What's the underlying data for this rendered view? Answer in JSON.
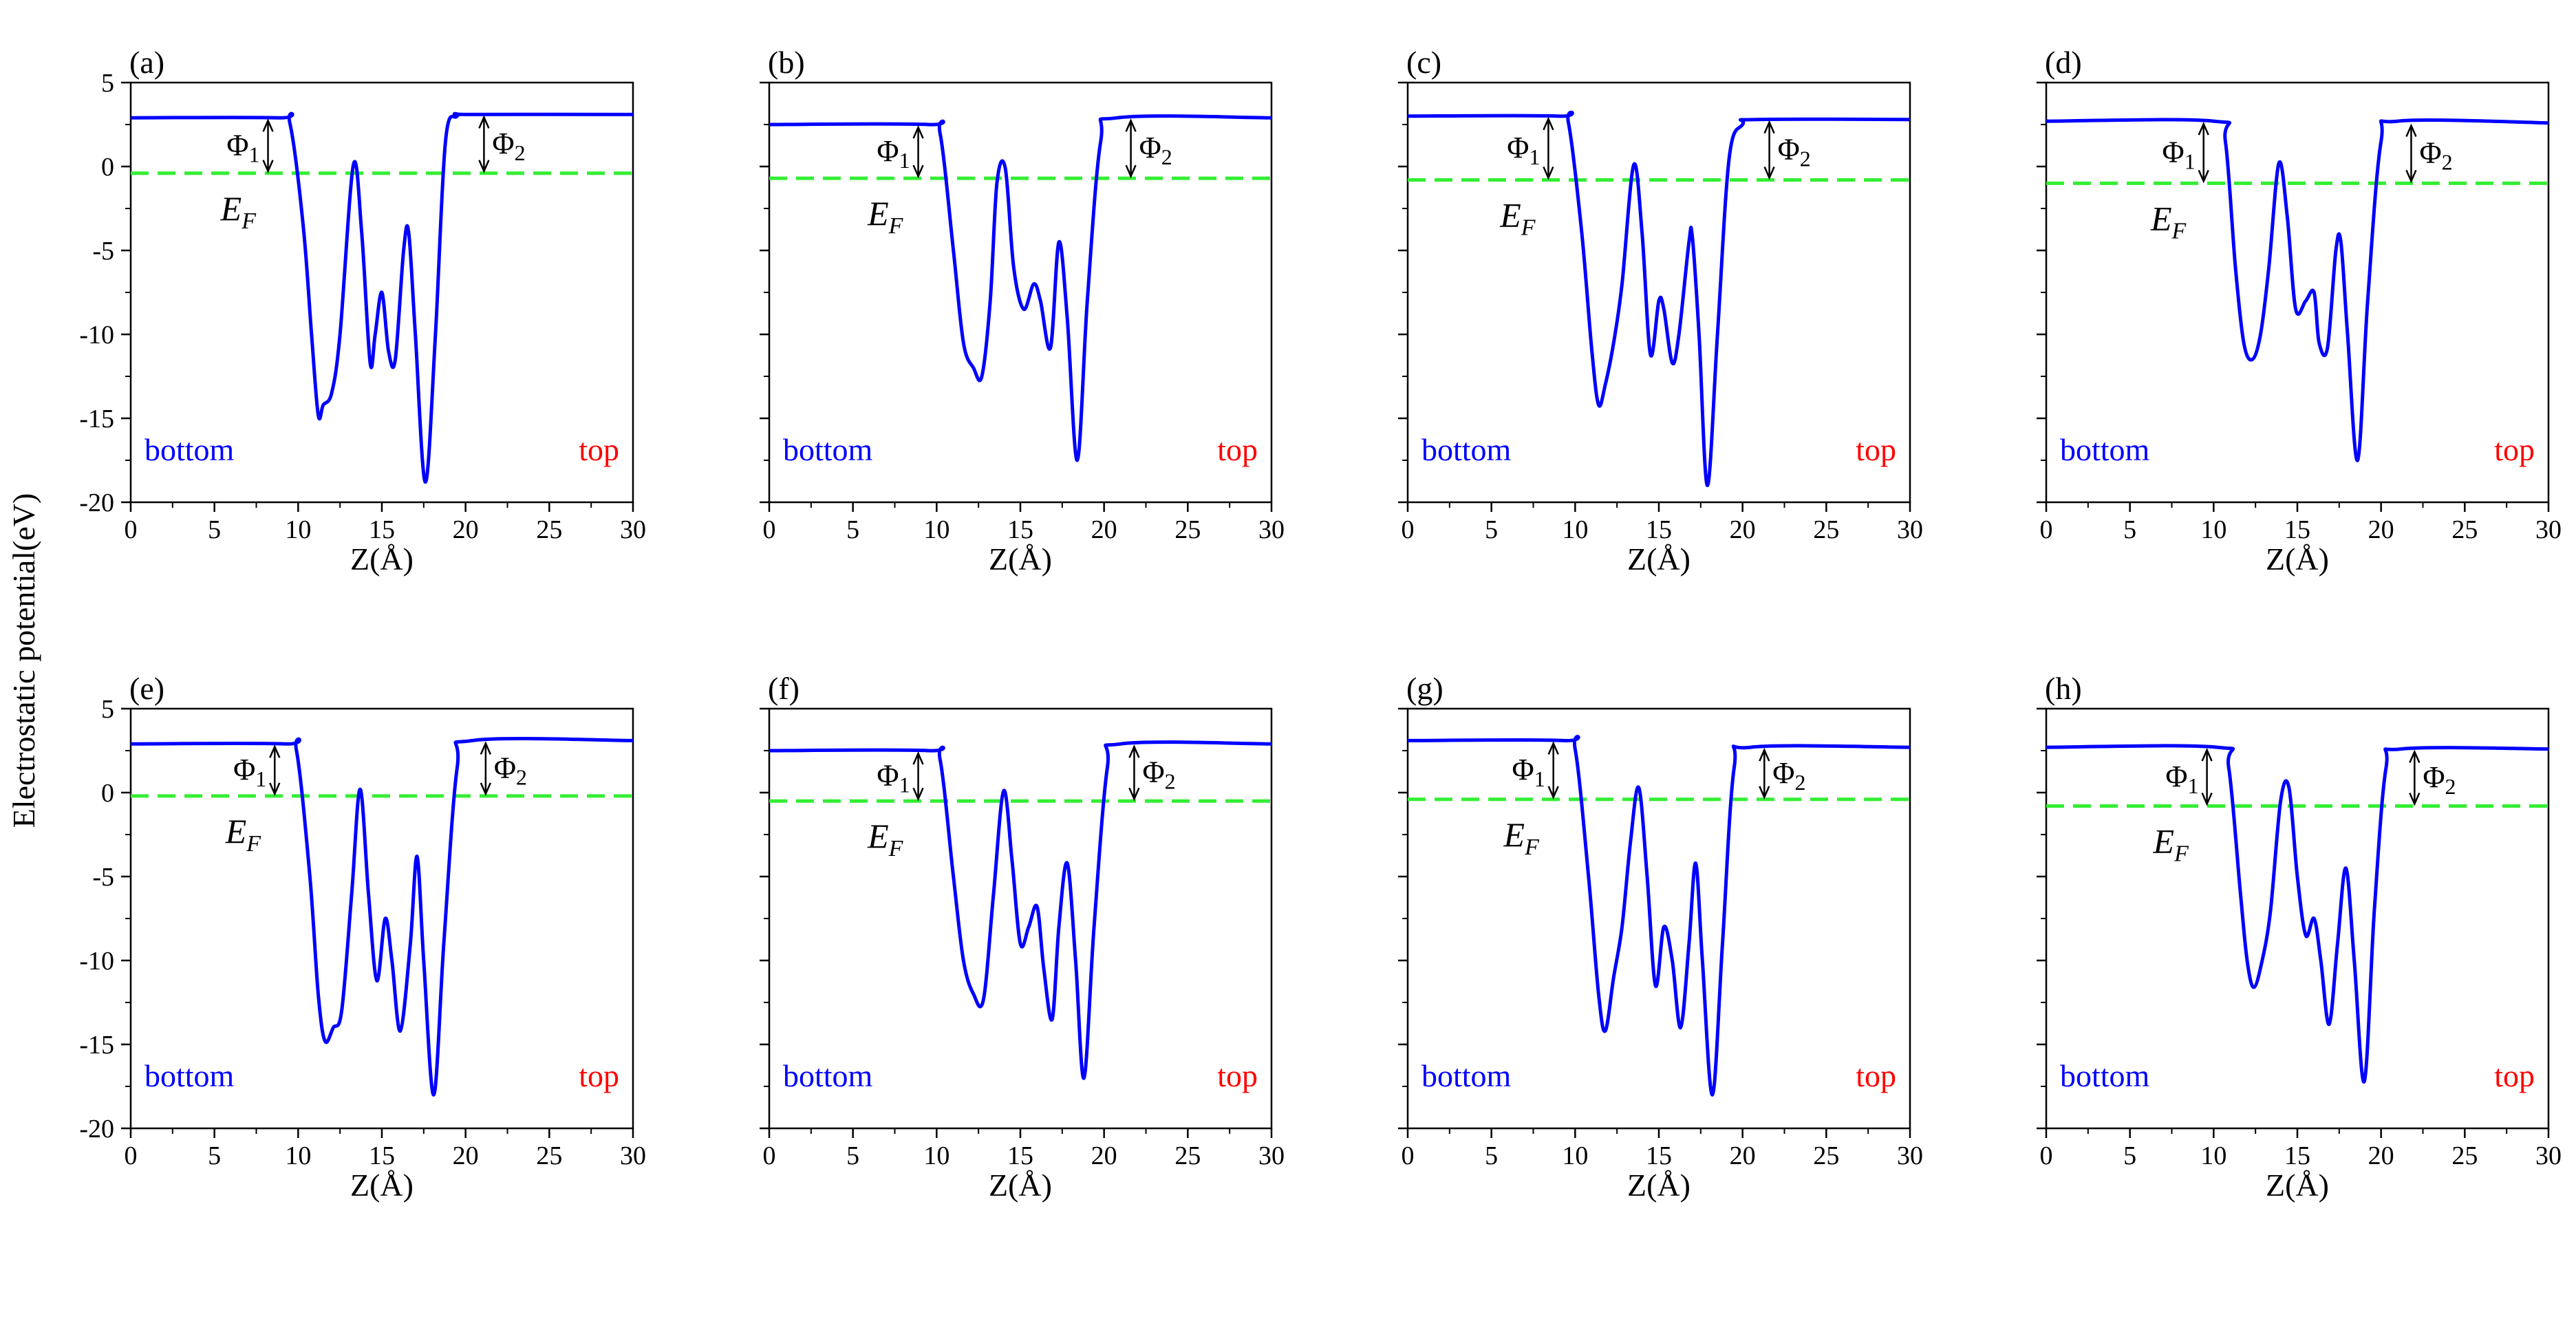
{
  "figure": {
    "ylabel": "Electrostatic potential(eV)",
    "xlabel": "Z(Å)"
  },
  "colors": {
    "potential_line": "#0000ff",
    "fermi_line": "#33ee33",
    "bottom_label": "#0000ff",
    "top_label": "#ff0000",
    "axes": "#000000"
  },
  "chart_data": [
    {
      "type": "line",
      "panel": "(a)",
      "xlabel": "Z(Å)",
      "ylabel": "Electrostatic potential(eV)",
      "xlim": [
        0,
        30
      ],
      "ylim": [
        -20,
        5
      ],
      "xticks": [
        "0",
        "5",
        "10",
        "15",
        "20",
        "25",
        "30"
      ],
      "yticks": [
        "5",
        "0",
        "-5",
        "-10",
        "-15",
        "-20"
      ],
      "series": [
        {
          "x": [
            0,
            8.8,
            9.5,
            10.3,
            10.8,
            11.2,
            11.5,
            12.0,
            12.5,
            13.3,
            13.8,
            14.3,
            14.6,
            15.0,
            15.4,
            15.8,
            16.3,
            16.6,
            17.0,
            17.6,
            18.2,
            18.8,
            19.5,
            20.3,
            30
          ],
          "y": [
            2.9,
            2.9,
            2.6,
            -3.5,
            -10,
            -14.8,
            -14.2,
            -13.5,
            -10,
            0.1,
            -4,
            -11.7,
            -10,
            -7.5,
            -11,
            -11.5,
            -5,
            -3.9,
            -10,
            -18.8,
            -10,
            1.5,
            3.0,
            3.1,
            3.1
          ]
        }
      ],
      "fermi_level": -0.4,
      "annotations": {
        "phi1": "Φ",
        "phi1_sub": "1",
        "phi2": "Φ",
        "phi2_sub": "2",
        "ef": "E",
        "ef_sub": "F",
        "bottom": "bottom",
        "top": "top"
      }
    },
    {
      "type": "line",
      "panel": "(b)",
      "xlabel": "Z(Å)",
      "ylabel": "",
      "xlim": [
        0,
        30
      ],
      "ylim": [
        -20,
        5
      ],
      "xticks": [
        "0",
        "5",
        "10",
        "15",
        "20",
        "25",
        "30"
      ],
      "yticks": [],
      "series": [
        {
          "x": [
            0,
            9.5,
            10.2,
            11.0,
            11.6,
            12.2,
            12.7,
            13.2,
            13.6,
            14.1,
            14.6,
            15.2,
            15.8,
            16.2,
            16.8,
            17.3,
            17.8,
            18.4,
            19.0,
            19.8,
            20.8,
            30
          ],
          "y": [
            2.5,
            2.5,
            2.0,
            -5,
            -10.5,
            -12,
            -12.5,
            -8,
            -1,
            -0.1,
            -6,
            -8.5,
            -7,
            -8,
            -10.8,
            -4.5,
            -9,
            -17.5,
            -8,
            1.5,
            2.9,
            2.9
          ]
        }
      ],
      "fermi_level": -0.7,
      "annotations": {
        "phi1": "Φ",
        "phi1_sub": "1",
        "phi2": "Φ",
        "phi2_sub": "2",
        "ef": "E",
        "ef_sub": "F",
        "bottom": "bottom",
        "top": "top"
      }
    },
    {
      "type": "line",
      "panel": "(c)",
      "xlabel": "Z(Å)",
      "ylabel": "",
      "xlim": [
        0,
        30
      ],
      "ylim": [
        -20,
        5
      ],
      "xticks": [
        "0",
        "5",
        "10",
        "15",
        "20",
        "25",
        "30"
      ],
      "yticks": [],
      "series": [
        {
          "x": [
            0,
            9.0,
            9.6,
            10.4,
            11.0,
            11.4,
            11.8,
            12.3,
            12.8,
            13.5,
            14.0,
            14.5,
            15.0,
            15.3,
            15.8,
            16.2,
            16.8,
            17.0,
            17.4,
            17.9,
            18.5,
            19.2,
            20.0,
            20.8,
            30
          ],
          "y": [
            3.0,
            3.0,
            2.6,
            -4,
            -11,
            -14.2,
            -13,
            -10.5,
            -7,
            0.1,
            -4,
            -11.2,
            -8,
            -8.5,
            -11.7,
            -10,
            -4.5,
            -4.2,
            -10,
            -19,
            -10,
            0.5,
            2.5,
            2.8,
            2.8
          ]
        }
      ],
      "fermi_level": -0.8,
      "annotations": {
        "phi1": "Φ",
        "phi1_sub": "1",
        "phi2": "Φ",
        "phi2_sub": "2",
        "ef": "E",
        "ef_sub": "F",
        "bottom": "bottom",
        "top": "top"
      }
    },
    {
      "type": "line",
      "panel": "(d)",
      "xlabel": "Z(Å)",
      "ylabel": "",
      "xlim": [
        0,
        30
      ],
      "ylim": [
        -20,
        5
      ],
      "xticks": [
        "0",
        "5",
        "10",
        "15",
        "20",
        "25",
        "30"
      ],
      "yticks": [],
      "series": [
        {
          "x": [
            0,
            10.0,
            10.7,
            11.3,
            11.8,
            12.3,
            12.8,
            13.3,
            13.9,
            14.4,
            14.9,
            15.5,
            16.0,
            16.3,
            16.8,
            17.3,
            17.6,
            18.0,
            18.6,
            19.2,
            20.0,
            21.0,
            30
          ],
          "y": [
            2.7,
            2.7,
            1.5,
            -6,
            -10.5,
            -11.5,
            -10,
            -6,
            0.2,
            -3,
            -8.5,
            -8,
            -7.5,
            -10.5,
            -10.8,
            -5,
            -4.5,
            -10,
            -17.5,
            -8,
            1.5,
            2.7,
            2.6
          ]
        }
      ],
      "fermi_level": -1.0,
      "annotations": {
        "phi1": "Φ",
        "phi1_sub": "1",
        "phi2": "Φ",
        "phi2_sub": "2",
        "ef": "E",
        "ef_sub": "F",
        "bottom": "bottom",
        "top": "top"
      }
    },
    {
      "type": "line",
      "panel": "(e)",
      "xlabel": "Z(Å)",
      "ylabel": "",
      "xlim": [
        0,
        30
      ],
      "ylim": [
        -20,
        5
      ],
      "xticks": [
        "0",
        "5",
        "10",
        "15",
        "20",
        "25",
        "30"
      ],
      "yticks": [
        "5",
        "0",
        "-5",
        "-10",
        "-15",
        "-20"
      ],
      "series": [
        {
          "x": [
            0,
            9.2,
            9.9,
            10.7,
            11.2,
            11.6,
            12.1,
            12.6,
            13.2,
            13.7,
            14.2,
            14.7,
            15.2,
            15.6,
            16.1,
            16.7,
            17.1,
            17.5,
            18.1,
            18.7,
            19.5,
            20.4,
            30
          ],
          "y": [
            2.9,
            2.9,
            2.5,
            -5,
            -12,
            -14.8,
            -14,
            -13,
            -6,
            0.2,
            -6,
            -11.2,
            -7.5,
            -10,
            -14.2,
            -9,
            -3.8,
            -10,
            -18,
            -9,
            1.5,
            3.1,
            3.1
          ]
        }
      ],
      "fermi_level": -0.2,
      "annotations": {
        "phi1": "Φ",
        "phi1_sub": "1",
        "phi2": "Φ",
        "phi2_sub": "2",
        "ef": "E",
        "ef_sub": "F",
        "bottom": "bottom",
        "top": "top"
      }
    },
    {
      "type": "line",
      "panel": "(f)",
      "xlabel": "Z(Å)",
      "ylabel": "",
      "xlim": [
        0,
        30
      ],
      "ylim": [
        -20,
        5
      ],
      "xticks": [
        "0",
        "5",
        "10",
        "15",
        "20",
        "25",
        "30"
      ],
      "yticks": [],
      "series": [
        {
          "x": [
            0,
            9.5,
            10.2,
            11.0,
            11.6,
            12.2,
            12.8,
            13.4,
            14.0,
            14.5,
            15.0,
            15.5,
            16.0,
            16.4,
            16.9,
            17.3,
            17.8,
            18.3,
            18.8,
            19.4,
            20.2,
            21.0,
            30
          ],
          "y": [
            2.5,
            2.5,
            2.0,
            -5,
            -10,
            -12,
            -12.3,
            -6,
            0.1,
            -4,
            -9,
            -8,
            -6.8,
            -10.5,
            -13.5,
            -8,
            -4.2,
            -10,
            -17,
            -8,
            1.5,
            2.9,
            2.9
          ]
        }
      ],
      "fermi_level": -0.5,
      "annotations": {
        "phi1": "Φ",
        "phi1_sub": "1",
        "phi2": "Φ",
        "phi2_sub": "2",
        "ef": "E",
        "ef_sub": "F",
        "bottom": "bottom",
        "top": "top"
      }
    },
    {
      "type": "line",
      "panel": "(g)",
      "xlabel": "Z(Å)",
      "ylabel": "",
      "xlim": [
        0,
        30
      ],
      "ylim": [
        -20,
        5
      ],
      "xticks": [
        "0",
        "5",
        "10",
        "15",
        "20",
        "25",
        "30"
      ],
      "yticks": [],
      "series": [
        {
          "x": [
            0,
            9.3,
            10.0,
            10.8,
            11.4,
            11.8,
            12.3,
            12.8,
            13.3,
            13.8,
            14.3,
            14.8,
            15.3,
            15.8,
            16.3,
            16.8,
            17.2,
            17.6,
            18.2,
            18.8,
            19.5,
            20.5,
            30
          ],
          "y": [
            3.1,
            3.1,
            2.6,
            -5,
            -12,
            -14.2,
            -11,
            -8,
            -3,
            0.3,
            -5,
            -11.5,
            -8,
            -10,
            -14,
            -9,
            -4.2,
            -10,
            -18,
            -9,
            1.5,
            2.7,
            2.7
          ]
        }
      ],
      "fermi_level": -0.4,
      "annotations": {
        "phi1": "Φ",
        "phi1_sub": "1",
        "phi2": "Φ",
        "phi2_sub": "2",
        "ef": "E",
        "ef_sub": "F",
        "bottom": "bottom",
        "top": "top"
      }
    },
    {
      "type": "line",
      "panel": "(h)",
      "xlabel": "Z(Å)",
      "ylabel": "",
      "xlim": [
        0,
        30
      ],
      "ylim": [
        -20,
        5
      ],
      "xticks": [
        "0",
        "5",
        "10",
        "15",
        "20",
        "25",
        "30"
      ],
      "yticks": [],
      "series": [
        {
          "x": [
            0,
            10.2,
            10.9,
            11.6,
            12.0,
            12.4,
            12.9,
            13.4,
            14.0,
            14.5,
            15.0,
            15.5,
            16.0,
            16.4,
            16.9,
            17.4,
            17.9,
            18.4,
            19.0,
            19.6,
            20.3,
            21.2,
            30
          ],
          "y": [
            2.7,
            2.7,
            1.5,
            -6,
            -10,
            -11.6,
            -10,
            -7,
            -0.5,
            0.3,
            -5,
            -8.5,
            -7.5,
            -10,
            -13.8,
            -9,
            -4.5,
            -10,
            -17.2,
            -7,
            1.5,
            2.6,
            2.6
          ]
        }
      ],
      "fermi_level": -0.8,
      "annotations": {
        "phi1": "Φ",
        "phi1_sub": "1",
        "phi2": "Φ",
        "phi2_sub": "2",
        "ef": "E",
        "ef_sub": "F",
        "bottom": "bottom",
        "top": "top"
      }
    }
  ]
}
